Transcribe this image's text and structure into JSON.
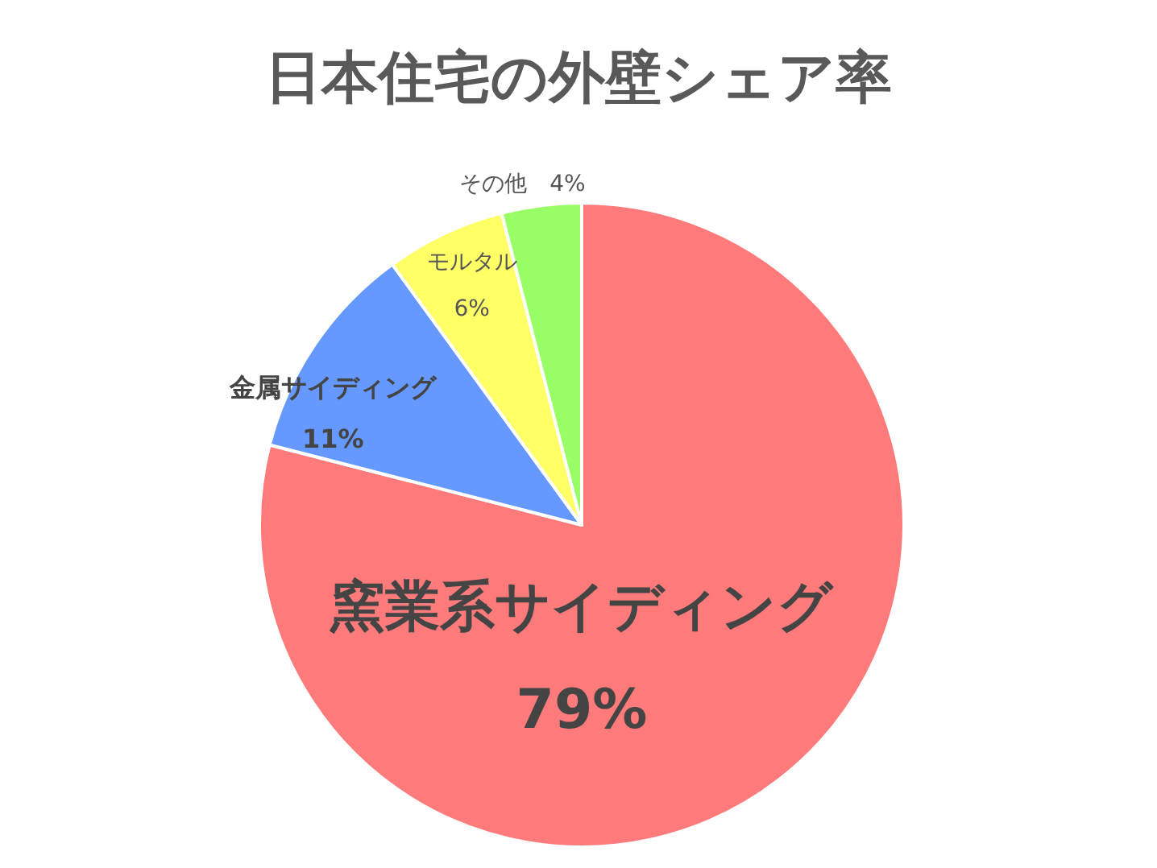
{
  "chart_data": {
    "type": "pie",
    "title": "日本住宅の外壁シェア率",
    "categories": [
      "窯業系サイディング",
      "金属サイディング",
      "モルタル",
      "その他"
    ],
    "values": [
      79,
      11,
      6,
      4
    ],
    "colors": [
      "#ff7b7b",
      "#6699ff",
      "#ffff66",
      "#99ff66"
    ],
    "value_labels": [
      "79%",
      "11%",
      "6%",
      "4%"
    ]
  }
}
